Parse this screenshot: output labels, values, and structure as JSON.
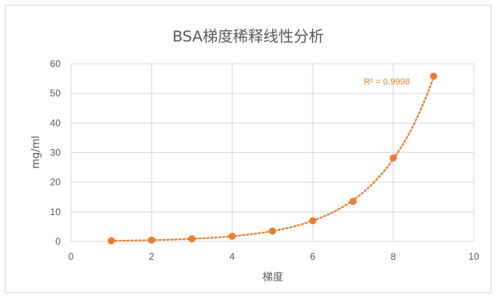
{
  "chart_data": {
    "type": "scatter",
    "title": "BSA梯度稀释线性分析",
    "xlabel": "梯度",
    "ylabel": "mg/ml",
    "xlim": [
      0,
      10
    ],
    "ylim": [
      0,
      60
    ],
    "x_ticks": [
      "0",
      "2",
      "4",
      "6",
      "8",
      "10"
    ],
    "y_ticks": [
      "0",
      "10",
      "20",
      "30",
      "40",
      "50",
      "60"
    ],
    "grid": true,
    "series": [
      {
        "x": [
          1,
          2,
          3,
          4,
          5,
          6,
          7,
          8,
          9
        ],
        "y": [
          0.22,
          0.44,
          0.88,
          1.75,
          3.5,
          7.0,
          13.5,
          28.2,
          55.8
        ]
      }
    ],
    "trendline": {
      "type": "exponential",
      "style": "dotted",
      "label": "R² = 0.9998"
    },
    "colors": {
      "series": "#ED7D31",
      "grid": "#d9d9d9",
      "text": "#595959"
    }
  }
}
